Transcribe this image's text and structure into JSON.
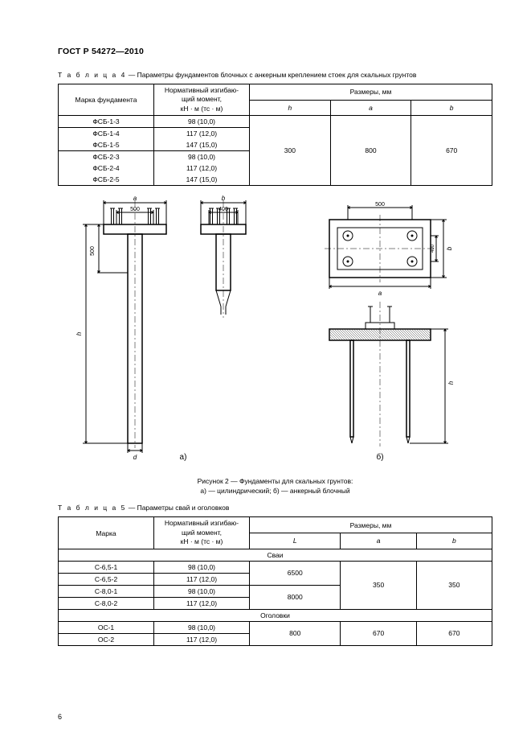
{
  "header": "ГОСТ Р 54272—2010",
  "page_number": "6",
  "table4": {
    "caption_label": "Т а б л и ц а  4",
    "caption_text": " — Параметры фундаментов блочных с анкерным креплением стоек для скальных грунтов",
    "col_mark": "Марка фундамента",
    "col_moment_l1": "Нормативный изгибаю-",
    "col_moment_l2": "щий момент,",
    "col_moment_l3": "кН · м (тс · м)",
    "col_dims": "Размеры, мм",
    "h": "h",
    "a": "a",
    "b": "b",
    "rows": [
      {
        "mark": "ФСБ-1-3",
        "m": "98 (10,0)"
      },
      {
        "mark": "ФСБ-1-4",
        "m": "117 (12,0)"
      },
      {
        "mark": "ФСБ-1-5",
        "m": "147 (15,0)"
      },
      {
        "mark": "ФСБ-2-3",
        "m": "98 (10,0)"
      },
      {
        "mark": "ФСБ-2-4",
        "m": "117 (12,0)"
      },
      {
        "mark": "ФСБ-2-5",
        "m": "147 (15,0)"
      }
    ],
    "val_h": "300",
    "val_a": "800",
    "val_b": "670"
  },
  "figure2": {
    "caption_l1": "Рисунок 2 — Фундаменты для скальных грунтов:",
    "caption_l2": "а) — цилиндрический; б) — анкерный блочный",
    "label_a": "а)",
    "label_b": "б)",
    "dim_a": "a",
    "dim_b": "b",
    "dim_h": "h",
    "dim_d": "d",
    "n500": "500",
    "n400": "400"
  },
  "table5": {
    "caption_label": "Т а б л и ц а  5",
    "caption_text": " — Параметры свай и оголовков",
    "col_mark": "Марка",
    "col_moment_l1": "Нормативный изгибаю-",
    "col_moment_l2": "щий момент,",
    "col_moment_l3": "кН · м (тс · м)",
    "col_dims": "Размеры, мм",
    "L": "L",
    "a": "a",
    "b": "b",
    "sect_piles": "Сваи",
    "sect_heads": "Оголовки",
    "piles": [
      {
        "mark": "С-6,5-1",
        "m": "98 (10,0)"
      },
      {
        "mark": "С-6,5-2",
        "m": "117 (12,0)"
      },
      {
        "mark": "С-8,0-1",
        "m": "98 (10,0)"
      },
      {
        "mark": "С-8,0-2",
        "m": "117 (12,0)"
      }
    ],
    "L1": "6500",
    "L2": "8000",
    "pa": "350",
    "pb": "350",
    "heads": [
      {
        "mark": "ОС-1",
        "m": "98 (10,0)"
      },
      {
        "mark": "ОС-2",
        "m": "117 (12,0)"
      }
    ],
    "hL": "800",
    "ha": "670",
    "hb": "670"
  },
  "style": {
    "stroke": "#000",
    "linew": 1,
    "linew_thick": 1.5,
    "hatch_gap": 3
  }
}
